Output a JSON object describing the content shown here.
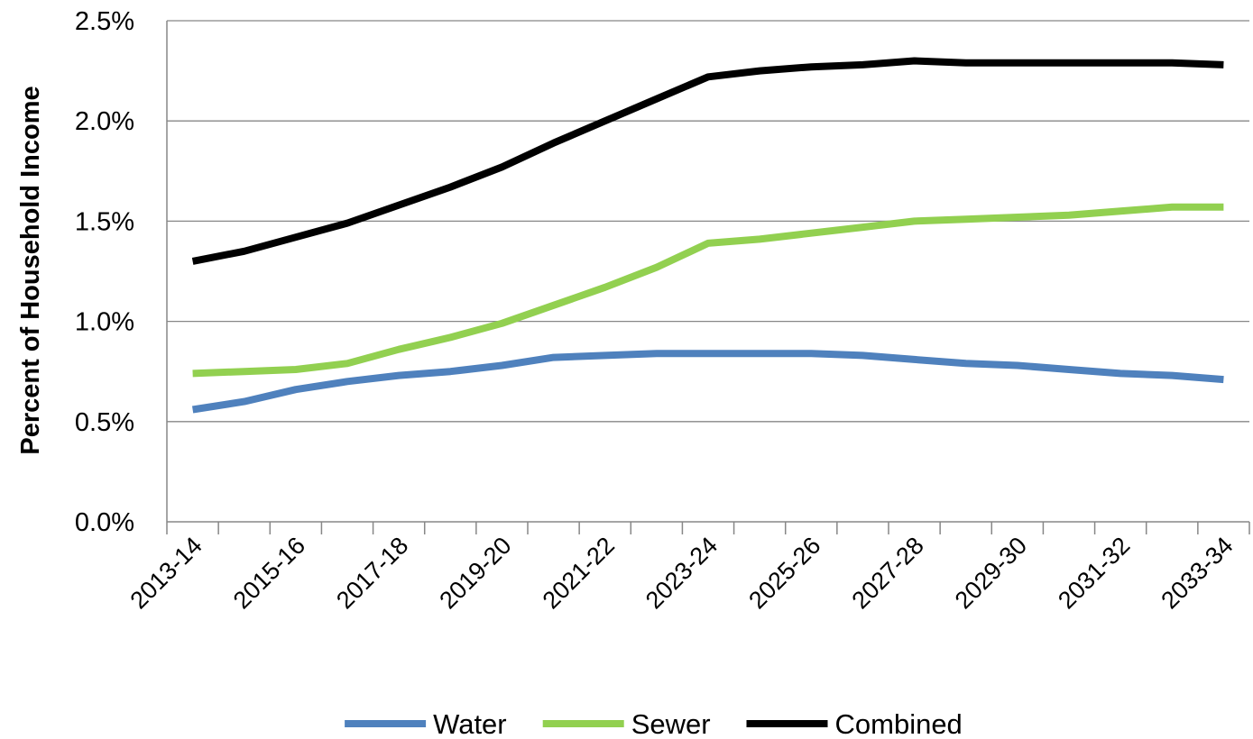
{
  "chart_data": {
    "type": "line",
    "title": "",
    "xlabel": "",
    "ylabel": "Percent of Household Income",
    "ylim": [
      0,
      0.025
    ],
    "yticks": [
      "0.0%",
      "0.5%",
      "1.0%",
      "1.5%",
      "2.0%",
      "2.5%"
    ],
    "ytick_values": [
      0,
      0.005,
      0.01,
      0.015,
      0.02,
      0.025
    ],
    "grid": true,
    "legend_position": "bottom",
    "categories": [
      "2013-14",
      "2014-15",
      "2015-16",
      "2016-17",
      "2017-18",
      "2018-19",
      "2019-20",
      "2020-21",
      "2021-22",
      "2022-23",
      "2023-24",
      "2024-25",
      "2025-26",
      "2026-27",
      "2027-28",
      "2028-29",
      "2029-30",
      "2030-31",
      "2031-32",
      "2032-33",
      "2033-34"
    ],
    "x_tick_labels": [
      "2013-14",
      "2015-16",
      "2017-18",
      "2019-20",
      "2021-22",
      "2023-24",
      "2025-26",
      "2027-28",
      "2029-30",
      "2031-32",
      "2033-34"
    ],
    "series": [
      {
        "name": "Water",
        "color": "#4f81bd",
        "values": [
          0.0056,
          0.006,
          0.0066,
          0.007,
          0.0073,
          0.0075,
          0.0078,
          0.0082,
          0.0083,
          0.0084,
          0.0084,
          0.0084,
          0.0084,
          0.0083,
          0.0081,
          0.0079,
          0.0078,
          0.0076,
          0.0074,
          0.0073,
          0.0071
        ]
      },
      {
        "name": "Sewer",
        "color": "#92d050",
        "values": [
          0.0074,
          0.0075,
          0.0076,
          0.0079,
          0.0086,
          0.0092,
          0.0099,
          0.0108,
          0.0117,
          0.0127,
          0.0139,
          0.0141,
          0.0144,
          0.0147,
          0.015,
          0.0151,
          0.0152,
          0.0153,
          0.0155,
          0.0157,
          0.0157
        ]
      },
      {
        "name": "Combined",
        "color": "#000000",
        "values": [
          0.013,
          0.0135,
          0.0142,
          0.0149,
          0.0158,
          0.0167,
          0.0177,
          0.0189,
          0.02,
          0.0211,
          0.0222,
          0.0225,
          0.0227,
          0.0228,
          0.023,
          0.0229,
          0.0229,
          0.0229,
          0.0229,
          0.0229,
          0.0228
        ]
      }
    ]
  }
}
